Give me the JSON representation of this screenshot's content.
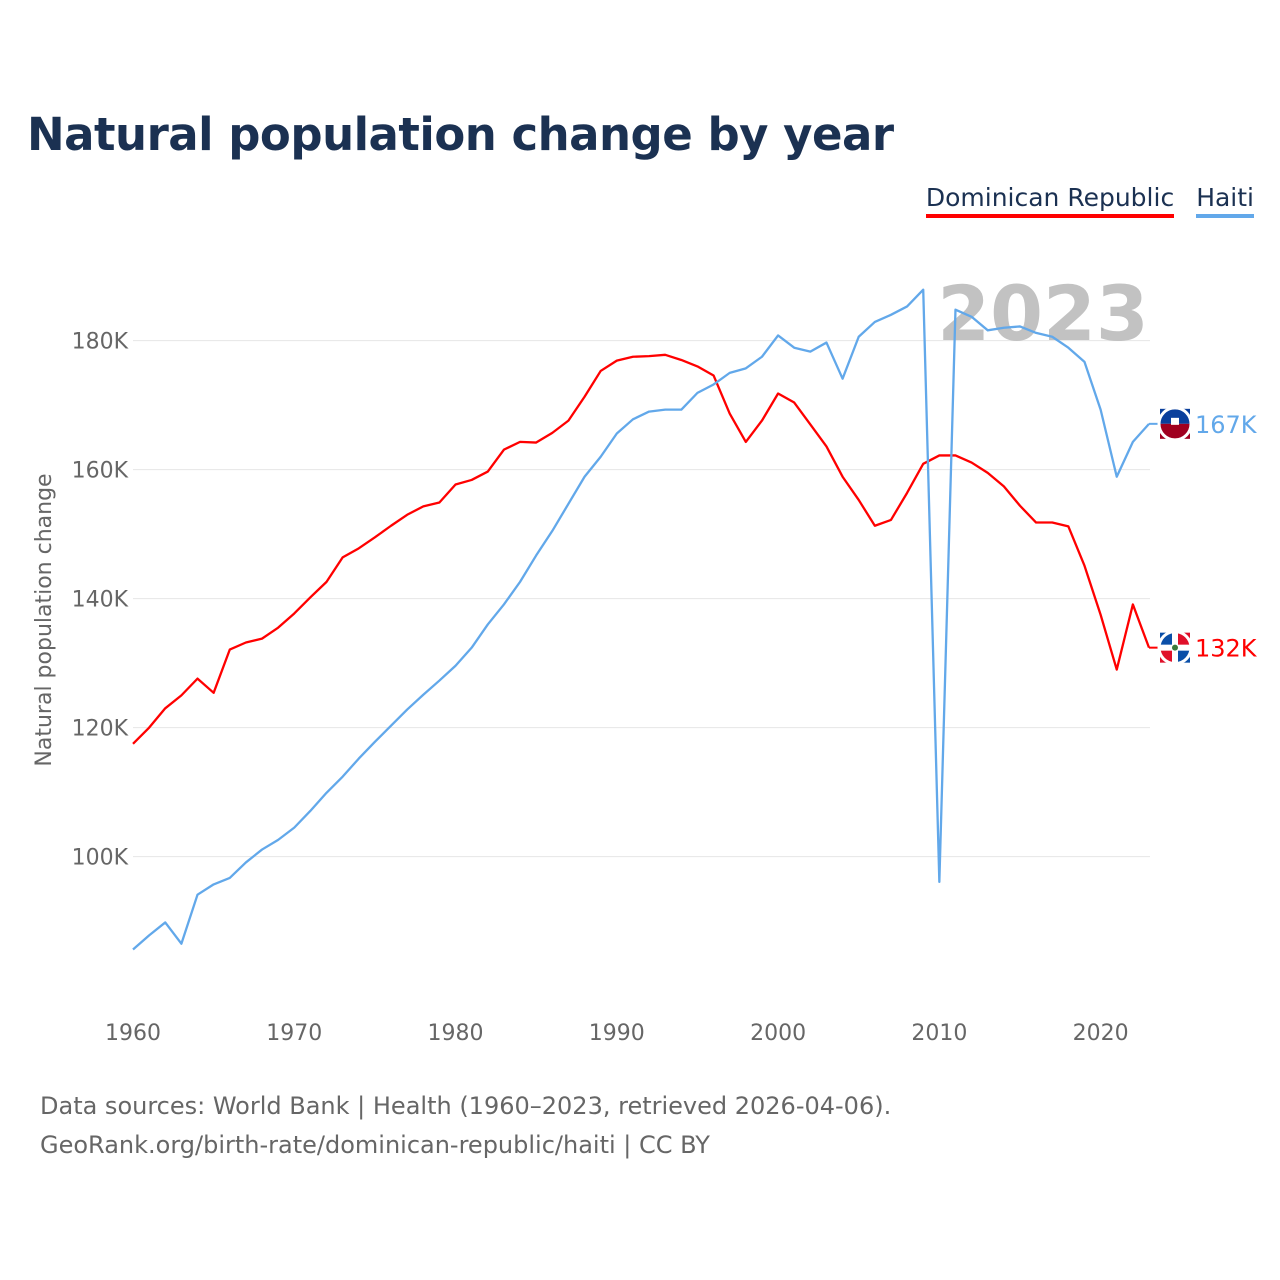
{
  "title": "Natural population change by year",
  "legend": [
    {
      "label": "Dominican Republic",
      "color": "#ff0000"
    },
    {
      "label": "Haiti",
      "color": "#62a8ea"
    }
  ],
  "year_overlay": "2023",
  "source_lines": [
    "Data sources: World Bank | Health (1960–2023, retrieved 2026-04-06).",
    "GeoRank.org/birth-rate/dominican-republic/haiti | CC BY"
  ],
  "chart_data": {
    "type": "line",
    "title": "Natural population change by year",
    "xlabel": "",
    "ylabel": "Natural population change",
    "xlim": [
      1960,
      2023
    ],
    "ylim": [
      77000,
      192500
    ],
    "grid": true,
    "legend_position": "top-right",
    "x_ticks": [
      1960,
      1970,
      1980,
      1990,
      2000,
      2010,
      2020
    ],
    "y_ticks": [
      {
        "value": 100000,
        "label": "100K"
      },
      {
        "value": 120000,
        "label": "120K"
      },
      {
        "value": 140000,
        "label": "140K"
      },
      {
        "value": 160000,
        "label": "160K"
      },
      {
        "value": 180000,
        "label": "180K"
      }
    ],
    "x_start": 1960,
    "series": [
      {
        "name": "Dominican Republic",
        "color": "#ff0000",
        "end_label": "132K",
        "flag": "dominican-republic-flag-icon",
        "values": [
          117500,
          120000,
          123000,
          125000,
          127600,
          125400,
          132100,
          133200,
          133800,
          135500,
          137700,
          140200,
          142600,
          146400,
          147800,
          149500,
          151300,
          153000,
          154300,
          154900,
          157700,
          158400,
          159700,
          163100,
          164300,
          164200,
          165700,
          167600,
          171300,
          175300,
          176900,
          177500,
          177600,
          177800,
          177000,
          176000,
          174600,
          168700,
          164300,
          167600,
          171800,
          170400,
          167000,
          163600,
          158900,
          155300,
          151300,
          152200,
          156400,
          160900,
          162200,
          162200,
          161100,
          159500,
          157400,
          154400,
          151800,
          151800,
          151200,
          145100,
          137500,
          129000,
          139100,
          132400
        ]
      },
      {
        "name": "Haiti",
        "color": "#62a8ea",
        "end_label": "167K",
        "flag": "haiti-flag-icon",
        "values": [
          85600,
          87800,
          89800,
          86500,
          94100,
          95700,
          96700,
          99100,
          101100,
          102600,
          104500,
          107100,
          109900,
          112400,
          115200,
          117800,
          120300,
          122800,
          125100,
          127300,
          129600,
          132400,
          136000,
          139100,
          142600,
          146700,
          150500,
          154700,
          158900,
          162000,
          165600,
          167800,
          169000,
          169300,
          169300,
          171900,
          173200,
          175000,
          175700,
          177500,
          180800,
          178900,
          178300,
          179700,
          174100,
          180600,
          182900,
          184000,
          185300,
          187900,
          96100,
          184800,
          183700,
          181600,
          182000,
          182200,
          181200,
          180600,
          178900,
          176700,
          169300,
          158900,
          164300,
          167100
        ]
      }
    ]
  }
}
